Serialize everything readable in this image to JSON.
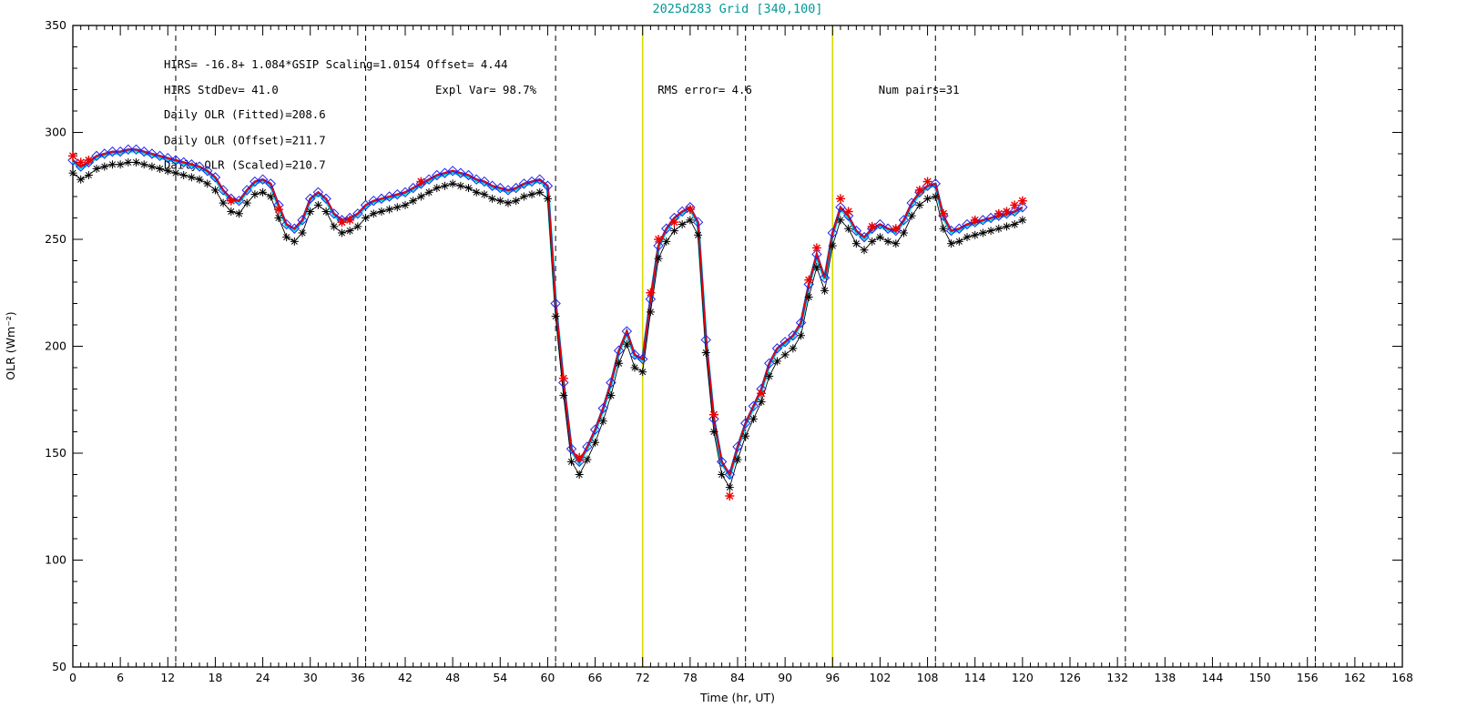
{
  "colors": {
    "title": "#009898",
    "frame": "#000000",
    "day_line": "#000000",
    "highlight_line": "#d8d800",
    "fitted_line": "#2222ee",
    "scaled_line": "#ee0000",
    "under_line": "#00dddd",
    "black_series": "#000000"
  },
  "chart_data": {
    "type": "line",
    "title": "2025d283 Grid [340,100]",
    "xlabel": "Time (hr, UT)",
    "ylabel": "OLR (Wm⁻²)",
    "xlim": [
      0,
      168
    ],
    "ylim": [
      50,
      350
    ],
    "x_major": 6,
    "x_minor": 1,
    "y_major": 50,
    "y_minor": 10,
    "grid": "off",
    "legend": "none",
    "day_boundaries": [
      13,
      37,
      61,
      85,
      109,
      133,
      157
    ],
    "highlight_lines": [
      72,
      96
    ],
    "annotations": [
      {
        "x": 11.5,
        "y": 330,
        "text": "HIRS=  -16.8+  1.084*GSIP  Scaling=1.0154  Offset=  4.44"
      },
      {
        "x": 11.5,
        "y": 318,
        "text": "HIRS StdDev= 41.0"
      },
      {
        "x": 45.8,
        "y": 318,
        "text": "Expl Var= 98.7%"
      },
      {
        "x": 73.9,
        "y": 318,
        "text": "RMS error=  4.6"
      },
      {
        "x": 101.8,
        "y": 318,
        "text": "Num pairs=31"
      },
      {
        "x": 11.5,
        "y": 306.5,
        "text": "Daily OLR (Fitted)=208.6"
      },
      {
        "x": 11.5,
        "y": 294.5,
        "text": "Daily OLR (Offset)=211.7"
      },
      {
        "x": 11.5,
        "y": 283,
        "text": "Daily OLR (Scaled)=210.7"
      }
    ],
    "x": [
      0,
      1,
      2,
      3,
      4,
      5,
      6,
      7,
      8,
      9,
      10,
      11,
      12,
      13,
      14,
      15,
      16,
      17,
      18,
      19,
      20,
      21,
      22,
      23,
      24,
      25,
      26,
      27,
      28,
      29,
      30,
      31,
      32,
      33,
      34,
      35,
      36,
      37,
      38,
      39,
      40,
      41,
      42,
      43,
      44,
      45,
      46,
      47,
      48,
      49,
      50,
      51,
      52,
      53,
      54,
      55,
      56,
      57,
      58,
      59,
      60,
      61,
      62,
      63,
      64,
      65,
      66,
      67,
      68,
      69,
      70,
      71,
      72,
      73,
      74,
      75,
      76,
      77,
      78,
      79,
      80,
      81,
      82,
      83,
      84,
      85,
      86,
      87,
      88,
      89,
      90,
      91,
      92,
      93,
      94,
      95,
      96,
      97,
      98,
      99,
      100,
      101,
      102,
      103,
      104,
      105,
      106,
      107,
      108,
      109,
      110,
      111,
      112,
      113,
      114,
      115,
      116,
      117,
      118,
      119,
      120
    ],
    "series": [
      {
        "name": "GSIP fitted OLR (blue diamonds)",
        "color": "#2222ee",
        "marker": "diamond",
        "msize": 5,
        "mwidth": 1,
        "line": true,
        "width": 2.4,
        "values": [
          287,
          284,
          286,
          289,
          290,
          291,
          291,
          292,
          292,
          291,
          290,
          289,
          288,
          287,
          286,
          285,
          284,
          282,
          279,
          273,
          269,
          268,
          273,
          277,
          278,
          276,
          266,
          257,
          255,
          259,
          269,
          272,
          269,
          262,
          259,
          260,
          262,
          266,
          268,
          269,
          270,
          271,
          272,
          274,
          276,
          278,
          280,
          281,
          282,
          281,
          280,
          278,
          277,
          275,
          274,
          273,
          274,
          276,
          277,
          278,
          275,
          220,
          183,
          152,
          146,
          153,
          161,
          171,
          183,
          198,
          207,
          196,
          194,
          222,
          247,
          255,
          260,
          263,
          265,
          258,
          203,
          166,
          146,
          140,
          153,
          164,
          172,
          180,
          192,
          199,
          202,
          205,
          211,
          229,
          243,
          232,
          253,
          265,
          261,
          254,
          251,
          255,
          257,
          255,
          254,
          259,
          267,
          272,
          275,
          276,
          261,
          254,
          255,
          257,
          258,
          259,
          260,
          261,
          262,
          263,
          265
        ]
      },
      {
        "name": "HIRS-equivalent offset OLR (black asterisks)",
        "color": "#000000",
        "marker": "asterisk",
        "msize": 4.5,
        "mwidth": 1,
        "line": true,
        "width": 0.9,
        "values": [
          281,
          278,
          280,
          283,
          284,
          285,
          285,
          286,
          286,
          285,
          284,
          283,
          282,
          281,
          280,
          279,
          278,
          276,
          273,
          267,
          263,
          262,
          267,
          271,
          272,
          270,
          260,
          251,
          249,
          253,
          263,
          266,
          263,
          256,
          253,
          254,
          256,
          260,
          262,
          263,
          264,
          265,
          266,
          268,
          270,
          272,
          274,
          275,
          276,
          275,
          274,
          272,
          271,
          269,
          268,
          267,
          268,
          270,
          271,
          272,
          269,
          214,
          177,
          146,
          140,
          147,
          155,
          165,
          177,
          192,
          201,
          190,
          188,
          216,
          241,
          249,
          254,
          257,
          259,
          252,
          197,
          160,
          140,
          134,
          147,
          158,
          166,
          174,
          186,
          193,
          196,
          199,
          205,
          223,
          237,
          226,
          247,
          259,
          255,
          248,
          245,
          249,
          251,
          249,
          248,
          253,
          261,
          266,
          269,
          270,
          255,
          248,
          249,
          251,
          252,
          253,
          254,
          255,
          256,
          257,
          259
        ]
      },
      {
        "name": "HIRS observations (red asterisks, 31 pairs)",
        "color": "#ee0000",
        "marker": "asterisk",
        "msize": 5,
        "mwidth": 1.4,
        "line": false,
        "values": [
          289,
          286,
          287,
          null,
          null,
          null,
          null,
          null,
          null,
          null,
          null,
          null,
          null,
          null,
          null,
          null,
          null,
          null,
          null,
          null,
          268,
          null,
          null,
          null,
          null,
          null,
          264,
          null,
          null,
          null,
          null,
          null,
          null,
          null,
          258,
          259,
          null,
          null,
          null,
          null,
          null,
          null,
          null,
          null,
          277,
          null,
          null,
          null,
          null,
          null,
          null,
          null,
          null,
          null,
          null,
          null,
          null,
          null,
          null,
          null,
          null,
          null,
          185,
          null,
          148,
          null,
          null,
          null,
          null,
          null,
          null,
          null,
          null,
          225,
          250,
          null,
          258,
          null,
          264,
          null,
          null,
          168,
          null,
          130,
          null,
          null,
          null,
          178,
          null,
          null,
          null,
          null,
          null,
          231,
          246,
          null,
          null,
          269,
          263,
          null,
          null,
          256,
          null,
          null,
          255,
          null,
          null,
          273,
          277,
          null,
          262,
          null,
          null,
          null,
          259,
          null,
          null,
          262,
          263,
          266,
          268
        ]
      }
    ],
    "overlay_lines": [
      {
        "series": 0,
        "color": "#00dddd",
        "width": 3.6,
        "dy": 1.5,
        "under": true
      },
      {
        "series": 0,
        "color": "#ee0000",
        "width": 1.7,
        "dy": 0,
        "under": false
      }
    ]
  }
}
